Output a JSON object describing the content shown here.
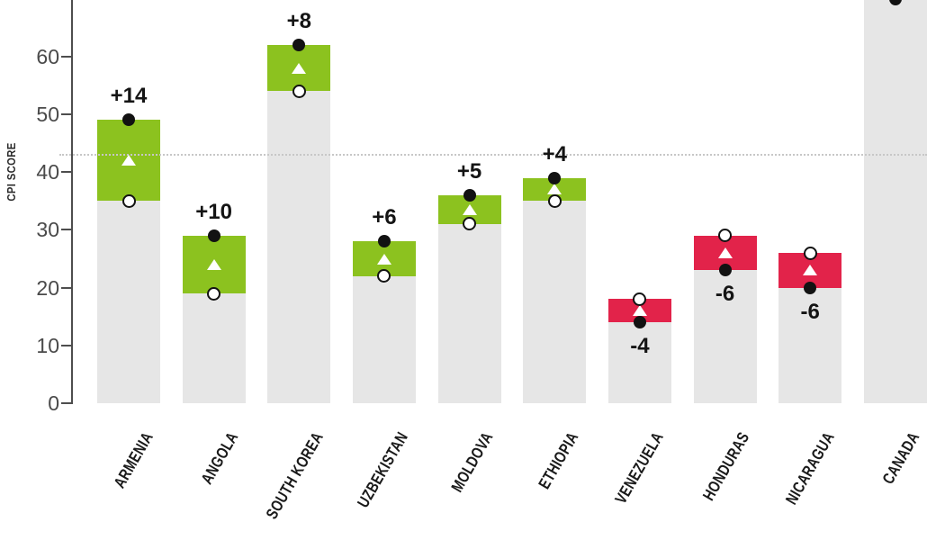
{
  "chart_data": {
    "type": "bar",
    "ylabel": "CPI SCORE",
    "yticks": [
      0,
      10,
      20,
      30,
      40,
      50,
      60
    ],
    "ylim": [
      0,
      70
    ],
    "grid": "off",
    "legend": "none",
    "average_line_value": 43,
    "colors": {
      "increase_band": "#8CC21F",
      "decrease_band": "#E2234A",
      "base_bar": "#E6E6E6",
      "end_dot": "#121212",
      "start_circle_fill": "#FFFFFF",
      "mid_triangle": "#FFFFFF",
      "axis": "#4D4D4D",
      "average_line": "#C7C7C7"
    },
    "marker_meaning": {
      "open_circle": "start score",
      "filled_dot": "end score",
      "white_triangle": "midpoint of change band"
    },
    "countries": [
      {
        "label": "ARMENIA",
        "start": 35,
        "end": 49,
        "change_label": "+14",
        "direction": "up"
      },
      {
        "label": "ANGOLA",
        "start": 19,
        "end": 29,
        "change_label": "+10",
        "direction": "up"
      },
      {
        "label": "SOUTH KOREA",
        "start": 54,
        "end": 62,
        "change_label": "+8",
        "direction": "up"
      },
      {
        "label": "UZBEKISTAN",
        "start": 22,
        "end": 28,
        "change_label": "+6",
        "direction": "up"
      },
      {
        "label": "MOLDOVA",
        "start": 31,
        "end": 36,
        "change_label": "+5",
        "direction": "up"
      },
      {
        "label": "ETHIOPIA",
        "start": 35,
        "end": 39,
        "change_label": "+4",
        "direction": "up"
      },
      {
        "label": "VENEZUELA",
        "start": 18,
        "end": 14,
        "change_label": "-4",
        "direction": "down"
      },
      {
        "label": "HONDURAS",
        "start": 29,
        "end": 23,
        "change_label": "-6",
        "direction": "down"
      },
      {
        "label": "NICARAGUA",
        "start": 26,
        "end": 20,
        "change_label": "-6",
        "direction": "down"
      },
      {
        "label": "CANADA",
        "start": null,
        "end": 70,
        "change_label": "",
        "direction": "down",
        "clipped_at_top": true
      }
    ]
  }
}
